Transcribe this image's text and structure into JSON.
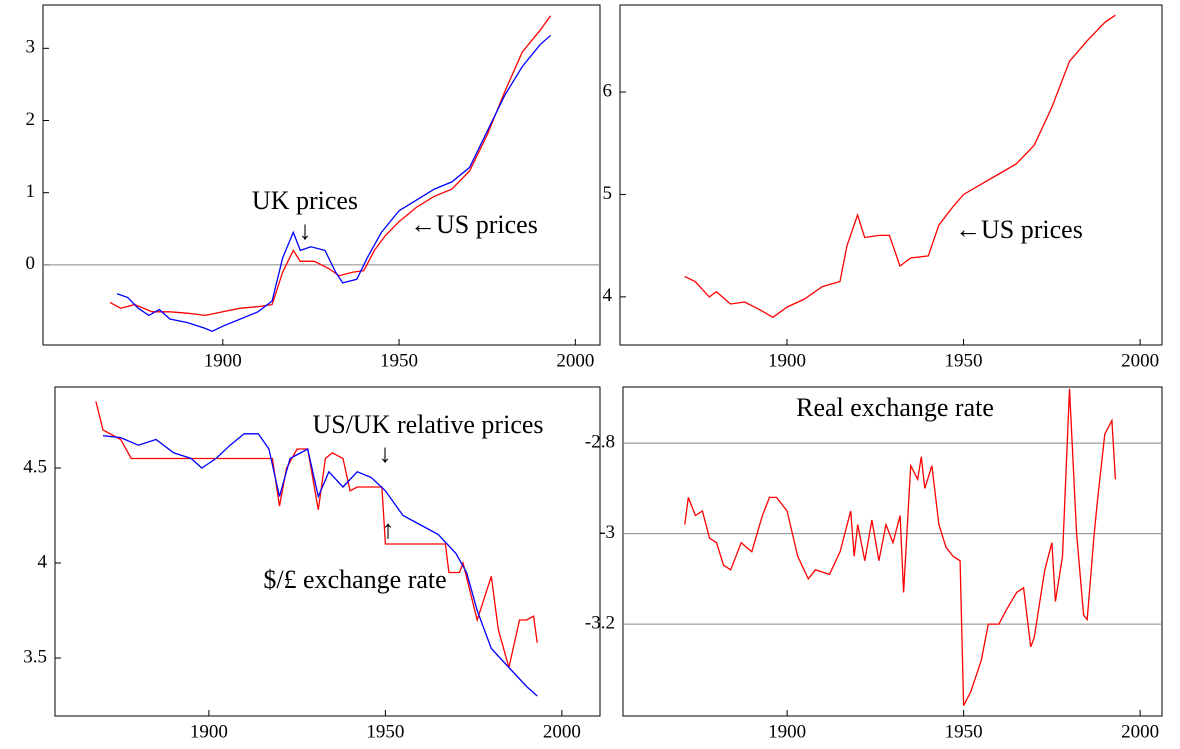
{
  "chart_data": [
    {
      "type": "line",
      "zero_line": true,
      "xlim": [
        1849,
        2007
      ],
      "xticks": [
        1900,
        1950,
        2000
      ],
      "ylim": [
        -1.11,
        3.6
      ],
      "yticks": [
        0,
        1,
        2,
        3
      ],
      "annotations": [
        "UK prices",
        "↓",
        "←US prices"
      ],
      "series": [
        {
          "color": "#ff0000",
          "x": [
            1868,
            1871,
            1875,
            1880,
            1885,
            1890,
            1895,
            1900,
            1905,
            1910,
            1914,
            1917,
            1920,
            1922,
            1926,
            1930,
            1933,
            1937,
            1940,
            1943,
            1946,
            1950,
            1955,
            1960,
            1965,
            1970,
            1975,
            1980,
            1985,
            1990,
            1993
          ],
          "values": [
            -0.52,
            -0.6,
            -0.55,
            -0.65,
            -0.65,
            -0.67,
            -0.7,
            -0.65,
            -0.6,
            -0.58,
            -0.55,
            -0.1,
            0.2,
            0.05,
            0.05,
            -0.05,
            -0.15,
            -0.1,
            -0.08,
            0.2,
            0.4,
            0.6,
            0.8,
            0.95,
            1.05,
            1.3,
            1.8,
            2.4,
            2.95,
            3.25,
            3.45
          ]
        },
        {
          "color": "#0000ff",
          "x": [
            1870,
            1873,
            1876,
            1879,
            1882,
            1885,
            1890,
            1895,
            1897,
            1900,
            1905,
            1910,
            1914,
            1917,
            1920,
            1922,
            1925,
            1929,
            1932,
            1934,
            1938,
            1941,
            1945,
            1950,
            1955,
            1960,
            1965,
            1970,
            1975,
            1980,
            1985,
            1990,
            1993
          ],
          "values": [
            -0.4,
            -0.45,
            -0.6,
            -0.7,
            -0.62,
            -0.75,
            -0.8,
            -0.88,
            -0.92,
            -0.85,
            -0.75,
            -0.65,
            -0.5,
            0.1,
            0.45,
            0.2,
            0.25,
            0.2,
            -0.1,
            -0.25,
            -0.2,
            0.1,
            0.45,
            0.75,
            0.9,
            1.05,
            1.15,
            1.35,
            1.85,
            2.35,
            2.75,
            3.05,
            3.18
          ]
        }
      ]
    },
    {
      "type": "line",
      "xlim": [
        1852.7,
        2006.2
      ],
      "xticks": [
        1900,
        1950,
        2000
      ],
      "ylim": [
        3.53,
        6.85
      ],
      "yticks": [
        4,
        5,
        6
      ],
      "annotations": [
        "←US prices"
      ],
      "series": [
        {
          "color": "#ff0000",
          "x": [
            1871,
            1874,
            1878,
            1880,
            1884,
            1888,
            1892,
            1896,
            1900,
            1905,
            1910,
            1915,
            1917,
            1920,
            1922,
            1926,
            1929,
            1932,
            1935,
            1940,
            1943,
            1947,
            1950,
            1955,
            1960,
            1965,
            1970,
            1975,
            1980,
            1985,
            1990,
            1993
          ],
          "values": [
            4.2,
            4.15,
            4.0,
            4.05,
            3.93,
            3.95,
            3.88,
            3.8,
            3.9,
            3.98,
            4.1,
            4.15,
            4.5,
            4.8,
            4.58,
            4.6,
            4.6,
            4.3,
            4.38,
            4.4,
            4.7,
            4.88,
            5.0,
            5.1,
            5.2,
            5.3,
            5.48,
            5.85,
            6.3,
            6.5,
            6.68,
            6.75
          ]
        }
      ]
    },
    {
      "type": "line",
      "xlim": [
        1856.4,
        2010.8
      ],
      "xticks": [
        1900,
        1950,
        2000
      ],
      "ylim": [
        3.195,
        4.926
      ],
      "yticks": [
        3.5,
        4,
        4.5
      ],
      "annotations": [
        "US/UK relative prices",
        "↓",
        "↑",
        "$/£ exchange rate"
      ],
      "series": [
        {
          "color": "#ff0000",
          "x": [
            1868,
            1870,
            1875,
            1878,
            1914,
            1918,
            1920,
            1922,
            1925,
            1928,
            1931,
            1933,
            1935,
            1938,
            1940,
            1942,
            1949,
            1950,
            1967,
            1968,
            1971,
            1972,
            1976,
            1980,
            1982,
            1985,
            1988,
            1990,
            1992,
            1993
          ],
          "values": [
            4.85,
            4.7,
            4.65,
            4.55,
            4.55,
            4.55,
            4.3,
            4.5,
            4.6,
            4.6,
            4.28,
            4.55,
            4.58,
            4.55,
            4.38,
            4.4,
            4.4,
            4.1,
            4.1,
            3.95,
            3.95,
            4.0,
            3.7,
            3.93,
            3.65,
            3.45,
            3.7,
            3.7,
            3.72,
            3.58
          ]
        },
        {
          "color": "#0000ff",
          "x": [
            1870,
            1875,
            1880,
            1885,
            1890,
            1895,
            1898,
            1902,
            1906,
            1910,
            1914,
            1917,
            1920,
            1923,
            1928,
            1931,
            1934,
            1938,
            1942,
            1946,
            1950,
            1955,
            1960,
            1965,
            1970,
            1973,
            1976,
            1980,
            1985,
            1990,
            1993
          ],
          "values": [
            4.67,
            4.66,
            4.62,
            4.65,
            4.58,
            4.55,
            4.5,
            4.55,
            4.62,
            4.68,
            4.68,
            4.6,
            4.35,
            4.55,
            4.6,
            4.35,
            4.48,
            4.4,
            4.48,
            4.45,
            4.38,
            4.25,
            4.2,
            4.15,
            4.05,
            3.95,
            3.75,
            3.55,
            3.45,
            3.35,
            3.3
          ]
        }
      ]
    },
    {
      "type": "line",
      "grid": true,
      "title": "Real exchange rate",
      "xlim": [
        1853.5,
        2006.2
      ],
      "xticks": [
        1900,
        1950,
        2000
      ],
      "ylim": [
        -3.403,
        -2.676
      ],
      "yticks": [
        -3.2,
        -3,
        -2.8
      ],
      "series": [
        {
          "color": "#ff0000",
          "x": [
            1871,
            1872,
            1874,
            1876,
            1878,
            1880,
            1882,
            1884,
            1887,
            1890,
            1893,
            1895,
            1897,
            1900,
            1903,
            1906,
            1908,
            1912,
            1915,
            1918,
            1919,
            1920,
            1922,
            1924,
            1926,
            1928,
            1930,
            1932,
            1933,
            1935,
            1937,
            1938,
            1939,
            1941,
            1943,
            1945,
            1947,
            1949,
            1950,
            1952,
            1955,
            1957,
            1960,
            1962,
            1965,
            1967,
            1969,
            1970,
            1973,
            1975,
            1976,
            1978,
            1980,
            1982,
            1984,
            1985,
            1987,
            1988,
            1990,
            1992,
            1993
          ],
          "values": [
            -2.98,
            -2.92,
            -2.96,
            -2.95,
            -3.01,
            -3.02,
            -3.07,
            -3.08,
            -3.02,
            -3.04,
            -2.96,
            -2.92,
            -2.92,
            -2.95,
            -3.05,
            -3.1,
            -3.08,
            -3.09,
            -3.04,
            -2.95,
            -3.05,
            -2.98,
            -3.06,
            -2.97,
            -3.06,
            -2.98,
            -3.02,
            -2.96,
            -3.13,
            -2.85,
            -2.88,
            -2.83,
            -2.9,
            -2.85,
            -2.98,
            -3.03,
            -3.05,
            -3.06,
            -3.38,
            -3.35,
            -3.28,
            -3.2,
            -3.2,
            -3.17,
            -3.13,
            -3.12,
            -3.25,
            -3.23,
            -3.08,
            -3.02,
            -3.15,
            -3.05,
            -2.68,
            -3.0,
            -3.18,
            -3.19,
            -3.0,
            -2.92,
            -2.78,
            -2.75,
            -2.88
          ]
        }
      ]
    }
  ]
}
